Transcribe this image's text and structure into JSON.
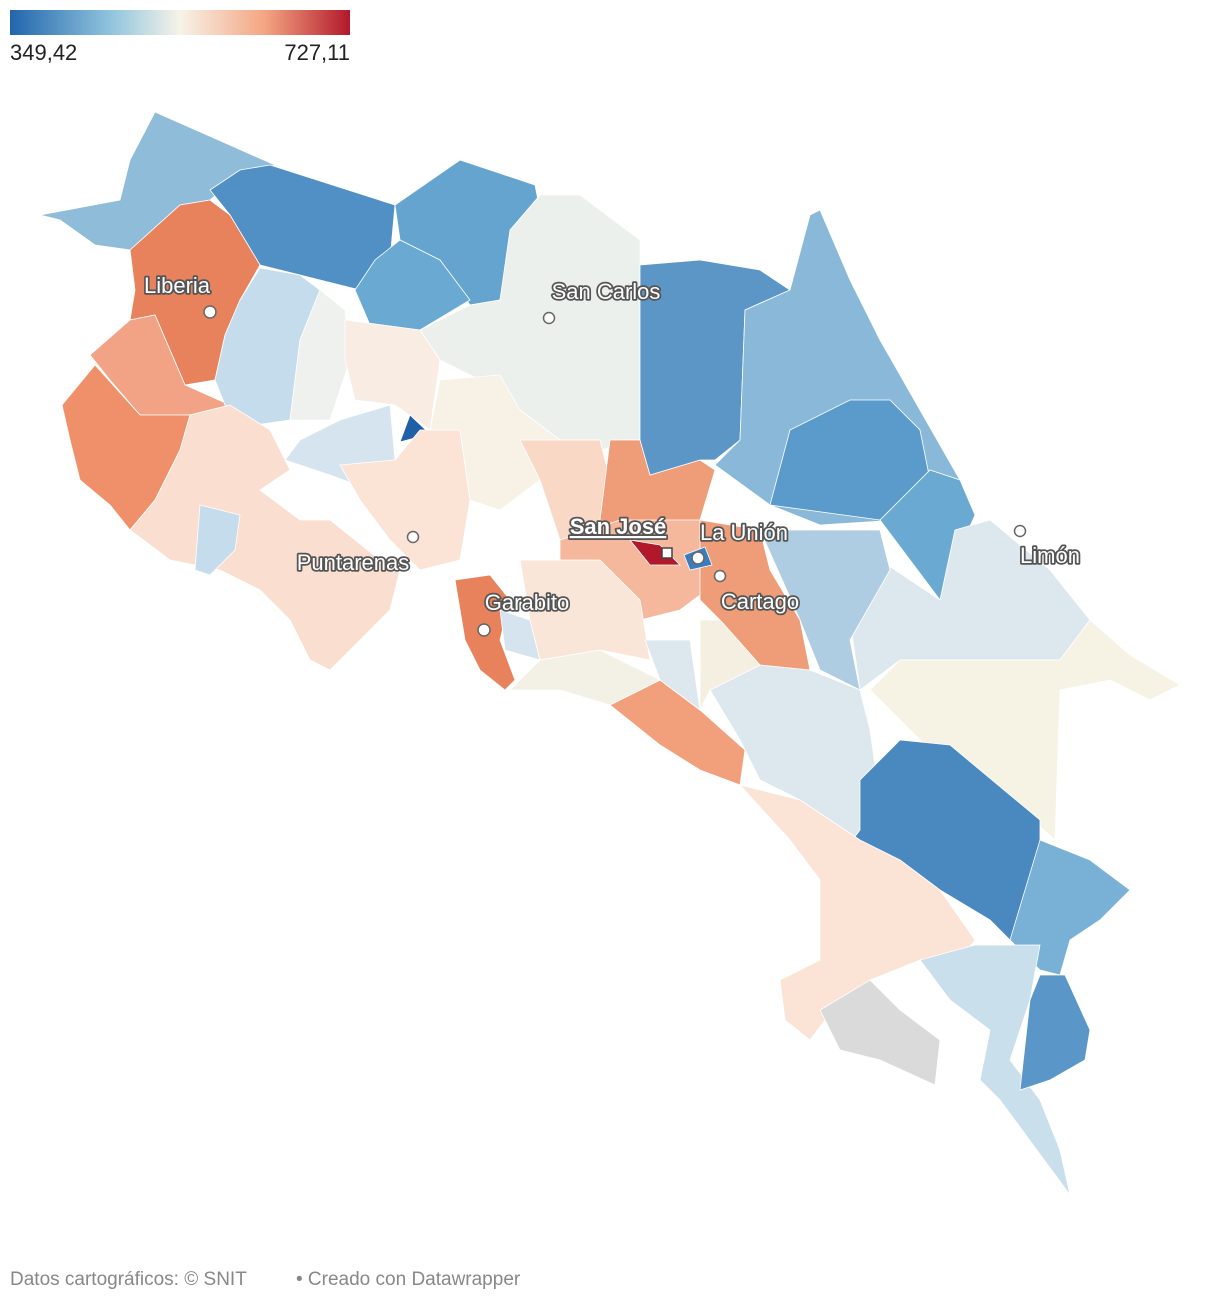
{
  "legend": {
    "min": {
      "value": 349.42,
      "label": "349,42"
    },
    "max": {
      "value": 727.11,
      "label": "727,11"
    }
  },
  "cities": [
    {
      "name": "Liberia"
    },
    {
      "name": "San Carlos"
    },
    {
      "name": "San José"
    },
    {
      "name": "La Unión"
    },
    {
      "name": "Limón"
    },
    {
      "name": "Puntarenas"
    },
    {
      "name": "Cartago"
    },
    {
      "name": "Garabito"
    }
  ],
  "footer": {
    "source": "Datos cartográficos: © SNIT",
    "credit": "• Creado con Datawrapper"
  }
}
